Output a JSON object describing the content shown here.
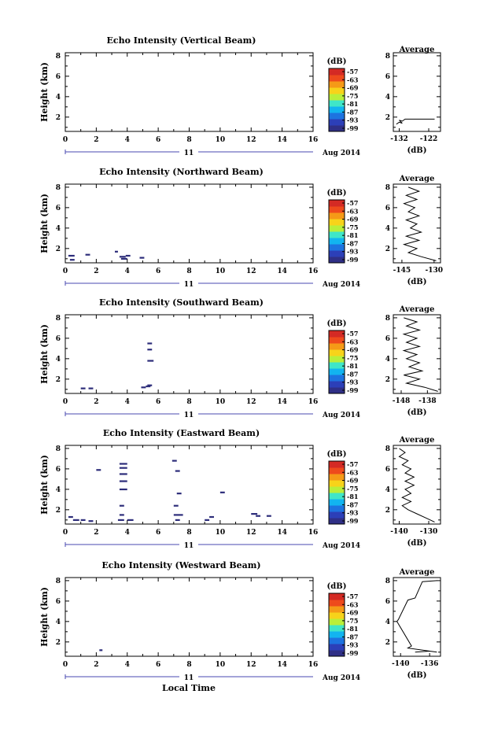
{
  "figure": {
    "xlabel": "Local Time",
    "date_label": "Aug 2014",
    "day_label": "11",
    "colorbar_unit": "(dB)",
    "colorbar_ticks": [
      "-57",
      "-63",
      "-69",
      "-75",
      "-81",
      "-87",
      "-93",
      "-99"
    ],
    "colors": [
      "#2f2f86",
      "#2c3fb8",
      "#1d73e0",
      "#12b4f0",
      "#3fe6c8",
      "#b9ef3a",
      "#f7d31a",
      "#f59a17",
      "#ee4a1c",
      "#d42a24"
    ]
  },
  "chart_data": [
    {
      "type": "heatmap",
      "title": "Echo Intensity (Vertical Beam)",
      "ylabel": "Height (km)",
      "xticks": [
        "0",
        "2",
        "4",
        "6",
        "8",
        "10",
        "12",
        "14",
        "16"
      ],
      "yticks": [
        "2",
        "4",
        "6",
        "8"
      ],
      "xlim": [
        0,
        16
      ],
      "ylim": [
        0.6,
        8.3
      ],
      "cells": [],
      "average": {
        "title": "Average",
        "xlabel": "(dB)",
        "xticks": [
          "-132",
          "-122"
        ],
        "xlim": [
          -134,
          -118
        ],
        "profile": [
          [
            -133,
            1.3
          ],
          [
            -132,
            1.5
          ],
          [
            -131,
            1.4
          ],
          [
            -132,
            1.7
          ],
          [
            -131,
            1.6
          ],
          [
            -130,
            1.8
          ],
          [
            -124,
            1.8
          ],
          [
            -120,
            1.8
          ]
        ]
      }
    },
    {
      "type": "heatmap",
      "title": "Echo Intensity (Northward Beam)",
      "ylabel": "Height (km)",
      "xticks": [
        "0",
        "2",
        "4",
        "6",
        "8",
        "10",
        "12",
        "14",
        "16"
      ],
      "yticks": [
        "2",
        "4",
        "6",
        "8"
      ],
      "xlim": [
        0,
        16
      ],
      "ylim": [
        0.6,
        8.3
      ],
      "cells": [
        [
          0.2,
          1.3,
          0.4
        ],
        [
          0.3,
          0.9,
          0.3
        ],
        [
          1.3,
          1.4,
          0.3
        ],
        [
          3.2,
          1.7,
          0.2
        ],
        [
          3.5,
          1.2,
          0.4
        ],
        [
          3.6,
          1.0,
          0.4
        ],
        [
          3.9,
          1.3,
          0.3
        ],
        [
          4.8,
          1.1,
          0.3
        ]
      ],
      "average": {
        "title": "Average",
        "xlabel": "(dB)",
        "xticks": [
          "-145",
          "-130"
        ],
        "xlim": [
          -149,
          -127
        ],
        "profile": [
          [
            -129,
            0.8
          ],
          [
            -136,
            1.2
          ],
          [
            -142,
            1.6
          ],
          [
            -138,
            2.0
          ],
          [
            -144,
            2.4
          ],
          [
            -137,
            2.8
          ],
          [
            -143,
            3.2
          ],
          [
            -136,
            3.6
          ],
          [
            -141,
            4.0
          ],
          [
            -138,
            4.4
          ],
          [
            -143,
            4.8
          ],
          [
            -137,
            5.2
          ],
          [
            -142,
            5.6
          ],
          [
            -139,
            6.0
          ],
          [
            -144,
            6.4
          ],
          [
            -138,
            6.8
          ],
          [
            -143,
            7.2
          ],
          [
            -137,
            7.6
          ],
          [
            -142,
            8.0
          ]
        ]
      }
    },
    {
      "type": "heatmap",
      "title": "Echo Intensity (Southward Beam)",
      "ylabel": "Height (km)",
      "xticks": [
        "0",
        "2",
        "4",
        "6",
        "8",
        "10",
        "12",
        "14",
        "16"
      ],
      "yticks": [
        "2",
        "4",
        "6",
        "8"
      ],
      "xlim": [
        0,
        16
      ],
      "ylim": [
        0.6,
        8.3
      ],
      "cells": [
        [
          1.0,
          1.1,
          0.3
        ],
        [
          1.5,
          1.1,
          0.3
        ],
        [
          4.9,
          1.2,
          0.3
        ],
        [
          5.2,
          1.3,
          0.3
        ],
        [
          5.3,
          1.4,
          0.3
        ],
        [
          5.3,
          3.8,
          0.4
        ],
        [
          5.3,
          4.9,
          0.3
        ],
        [
          5.3,
          5.5,
          0.3
        ]
      ],
      "average": {
        "title": "Average",
        "xlabel": "(dB)",
        "xticks": [
          "-148",
          "-138"
        ],
        "xlim": [
          -151,
          -133
        ],
        "profile": [
          [
            -134,
            0.8
          ],
          [
            -139,
            1.2
          ],
          [
            -146,
            1.6
          ],
          [
            -141,
            2.0
          ],
          [
            -147,
            2.4
          ],
          [
            -140,
            2.8
          ],
          [
            -145,
            3.2
          ],
          [
            -141,
            3.6
          ],
          [
            -146,
            4.0
          ],
          [
            -142,
            4.4
          ],
          [
            -147,
            4.8
          ],
          [
            -141,
            5.2
          ],
          [
            -146,
            5.6
          ],
          [
            -142,
            6.0
          ],
          [
            -147,
            6.4
          ],
          [
            -141,
            6.8
          ],
          [
            -146,
            7.2
          ],
          [
            -142,
            7.6
          ],
          [
            -147,
            8.0
          ]
        ]
      }
    },
    {
      "type": "heatmap",
      "title": "Echo Intensity (Eastward Beam)",
      "ylabel": "Height (km)",
      "xticks": [
        "0",
        "2",
        "4",
        "6",
        "8",
        "10",
        "12",
        "14",
        "16"
      ],
      "yticks": [
        "2",
        "4",
        "6",
        "8"
      ],
      "xlim": [
        0,
        16
      ],
      "ylim": [
        0.6,
        8.3
      ],
      "cells": [
        [
          0.2,
          1.3,
          0.3
        ],
        [
          0.5,
          1.0,
          0.4
        ],
        [
          1.0,
          1.0,
          0.3
        ],
        [
          1.5,
          0.9,
          0.3
        ],
        [
          2.0,
          5.9,
          0.3
        ],
        [
          3.4,
          1.0,
          0.4
        ],
        [
          3.5,
          1.5,
          0.3
        ],
        [
          3.5,
          2.4,
          0.3
        ],
        [
          3.5,
          4.0,
          0.5
        ],
        [
          3.5,
          4.8,
          0.5
        ],
        [
          3.5,
          5.5,
          0.5
        ],
        [
          3.5,
          6.1,
          0.5
        ],
        [
          3.5,
          6.5,
          0.5
        ],
        [
          4.0,
          1.0,
          0.4
        ],
        [
          6.9,
          6.8,
          0.3
        ],
        [
          7.0,
          2.4,
          0.3
        ],
        [
          7.0,
          1.5,
          0.6
        ],
        [
          7.1,
          1.0,
          0.3
        ],
        [
          7.1,
          5.8,
          0.3
        ],
        [
          7.2,
          3.6,
          0.3
        ],
        [
          9.0,
          1.0,
          0.3
        ],
        [
          9.3,
          1.3,
          0.3
        ],
        [
          10.0,
          3.7,
          0.3
        ],
        [
          12.0,
          1.6,
          0.4
        ],
        [
          12.3,
          1.4,
          0.3
        ],
        [
          13.0,
          1.4,
          0.3
        ]
      ],
      "average": {
        "title": "Average",
        "xlabel": "(dB)",
        "xticks": [
          "-140",
          "-130"
        ],
        "xlim": [
          -142,
          -126
        ],
        "profile": [
          [
            -128,
            0.8
          ],
          [
            -131,
            1.2
          ],
          [
            -134,
            1.6
          ],
          [
            -137,
            2.0
          ],
          [
            -139,
            2.4
          ],
          [
            -136,
            2.8
          ],
          [
            -139,
            3.2
          ],
          [
            -136,
            3.6
          ],
          [
            -138,
            4.0
          ],
          [
            -135,
            4.4
          ],
          [
            -138,
            4.8
          ],
          [
            -135,
            5.2
          ],
          [
            -138,
            5.6
          ],
          [
            -136,
            6.0
          ],
          [
            -139,
            6.4
          ],
          [
            -137,
            6.8
          ],
          [
            -140,
            7.2
          ],
          [
            -138,
            7.6
          ],
          [
            -140,
            8.0
          ]
        ]
      }
    },
    {
      "type": "heatmap",
      "title": "Echo Intensity (Westward Beam)",
      "ylabel": "Height (km)",
      "xticks": [
        "0",
        "2",
        "4",
        "6",
        "8",
        "10",
        "12",
        "14",
        "16"
      ],
      "yticks": [
        "2",
        "4",
        "6",
        "8"
      ],
      "xlim": [
        0,
        16
      ],
      "ylim": [
        0.6,
        8.3
      ],
      "cells": [
        [
          2.2,
          1.2,
          0.2
        ]
      ],
      "average": {
        "title": "Average",
        "xlabel": "(dB)",
        "xticks": [
          "-140",
          "-136"
        ],
        "xlim": [
          -141,
          -134.5
        ],
        "profile": [
          [
            -138,
            1.0
          ],
          [
            -136,
            1.1
          ],
          [
            -135,
            1.0
          ],
          [
            -139,
            1.4
          ],
          [
            -138.5,
            1.6
          ],
          [
            -140.5,
            4.0
          ],
          [
            -140.3,
            4.2
          ],
          [
            -139,
            6.1
          ],
          [
            -138,
            6.3
          ],
          [
            -137,
            7.9
          ],
          [
            -135,
            8.0
          ]
        ]
      }
    }
  ]
}
